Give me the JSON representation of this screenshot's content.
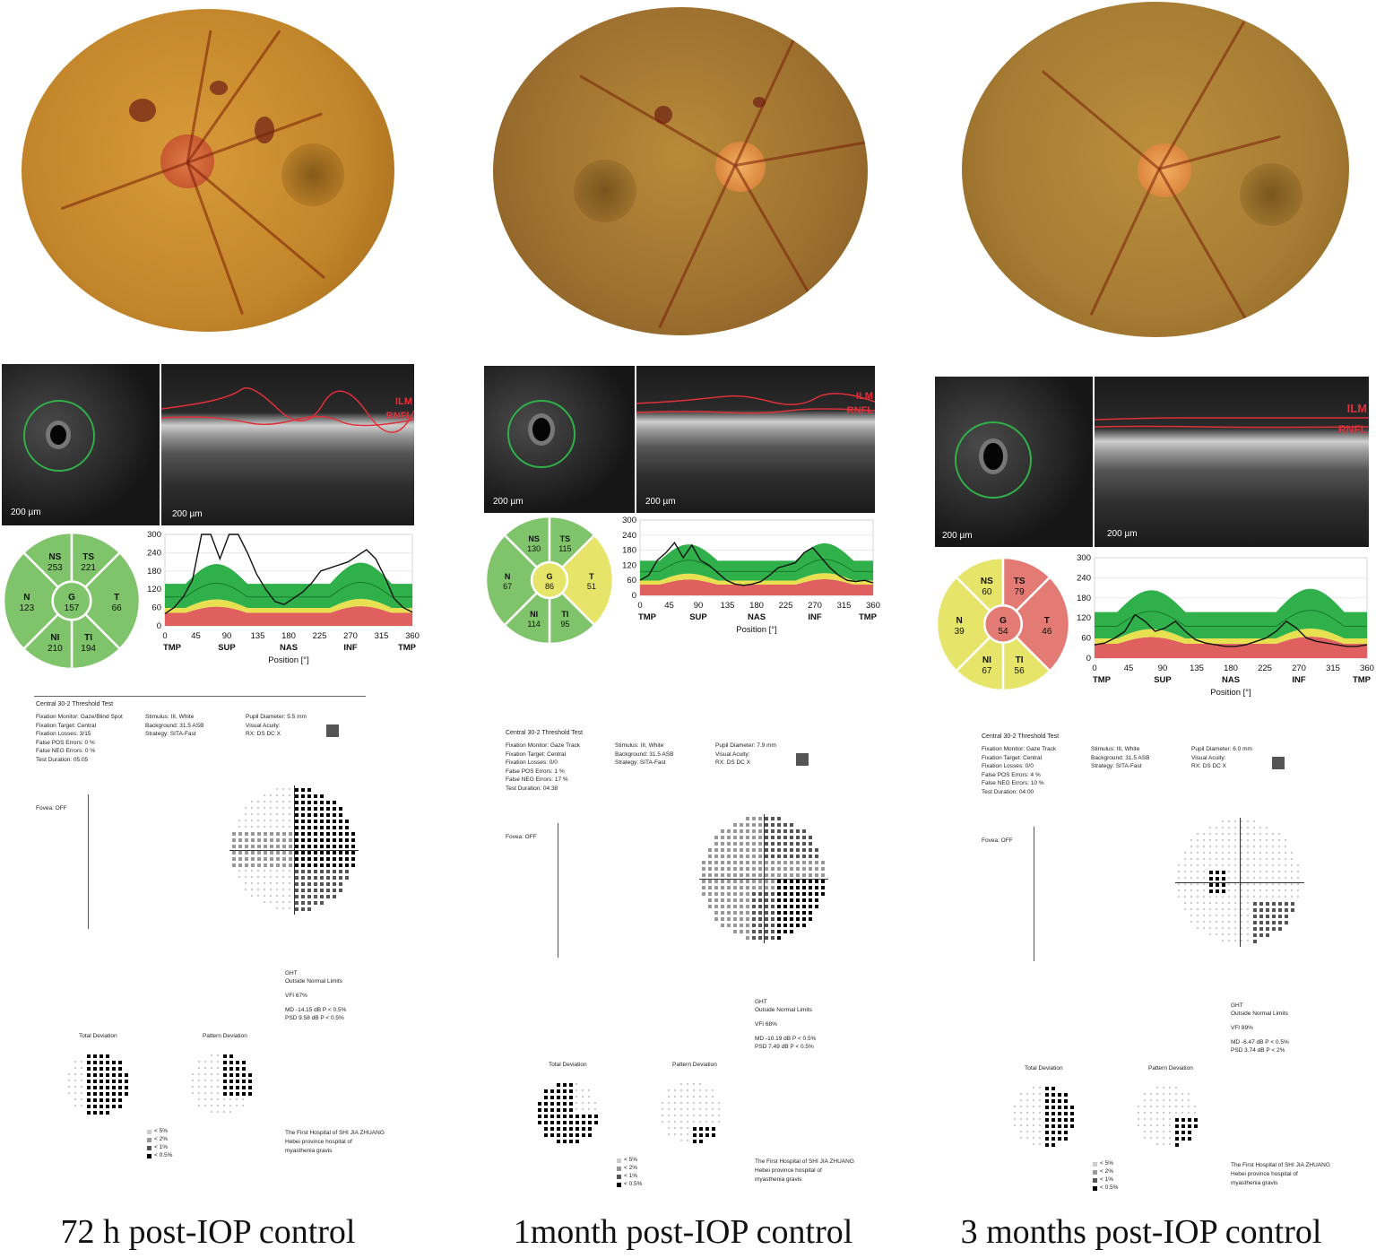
{
  "colors": {
    "fundus_orange": "#c68a2c",
    "oct_green": "#2fb04a",
    "oct_yellow": "#e8e050",
    "oct_red": "#e06060",
    "wheel_green": "#7fc46a",
    "wheel_yellow": "#e7e46a",
    "wheel_red": "#e47a74"
  },
  "tsnit": {
    "y_ticks": [
      "300",
      "240",
      "180",
      "120",
      "60",
      "0"
    ],
    "x_ticks": [
      "0",
      "45",
      "90",
      "135",
      "180",
      "225",
      "270",
      "315",
      "360"
    ],
    "x_regions": [
      "TMP",
      "SUP",
      "NAS",
      "INF",
      "TMP"
    ],
    "axis_label": "Position [°]"
  },
  "oct_scale": "200 µm",
  "layers": {
    "ilm": "ILM",
    "rnfl": "RNFL"
  },
  "vf_labels": {
    "test": "Central 30-2 Threshold Test",
    "total_dev": "Total Deviation",
    "pattern_dev": "Pattern Deviation",
    "ght": "GHT",
    "ght_result": "Outside Normal Limits",
    "hospital": "The First Hospital of SHI JIA ZHUANG",
    "hospital2": "Hebei province hospital of",
    "hospital3": "myasthenia gravis",
    "legend": [
      "< 5%",
      "< 2%",
      "< 1%",
      "< 0.5%"
    ],
    "fovea": "Fovea: OFF",
    "stimulus": "Stimulus: III, White",
    "background": "Background: 31.5 ASB",
    "strategy": "Strategy: SITA-Fast"
  },
  "panels": [
    {
      "caption": "72 h post-IOP control",
      "wheel": {
        "NS": "253",
        "TS": "221",
        "N": "123",
        "G": "157",
        "T": "66",
        "NI": "210",
        "TI": "194"
      },
      "vf": {
        "monitor": "Fixation Monitor: Gaze/Blind Spot",
        "target": "Fixation Target: Central",
        "losses": "Fixation Losses: 3/15",
        "fpos": "False POS Errors: 0 %",
        "fneg": "False NEG Errors: 0 %",
        "duration": "Test Duration: 05:05",
        "pupil": "Pupil Diameter: 5.5 mm",
        "acuity": "Visual Acuity:",
        "rx": "RX: DS DC X",
        "vfi": "VFI 67%",
        "md": "MD -14.15 dB P < 0.5%",
        "psd": "PSD 9.58 dB P < 0.5%"
      }
    },
    {
      "caption": "1month post-IOP control",
      "wheel": {
        "NS": "130",
        "TS": "115",
        "N": "67",
        "G": "86",
        "T": "51",
        "NI": "114",
        "TI": "95"
      },
      "vf": {
        "monitor": "Fixation Monitor: Gaze Track",
        "target": "Fixation Target: Central",
        "losses": "Fixation Losses: 0/0",
        "fpos": "False POS Errors: 1 %",
        "fneg": "False NEG Errors: 17 %",
        "duration": "Test Duration: 04:38",
        "pupil": "Pupil Diameter: 7.9 mm",
        "acuity": "Visual Acuity:",
        "rx": "RX: DS DC X",
        "vfi": "VFI 68%",
        "md": "MD -10.19 dB P < 0.5%",
        "psd": "PSD 7.49 dB P < 0.5%"
      }
    },
    {
      "caption": "3 months post-IOP control",
      "wheel": {
        "NS": "60",
        "TS": "79",
        "N": "39",
        "G": "54",
        "T": "46",
        "NI": "67",
        "TI": "56"
      },
      "vf": {
        "monitor": "Fixation Monitor: Gaze Track",
        "target": "Fixation Target: Central",
        "losses": "Fixation Losses: 0/0",
        "fpos": "False POS Errors: 4 %",
        "fneg": "False NEG Errors: 10 %",
        "duration": "Test Duration: 04:00",
        "pupil": "Pupil Diameter: 6.0 mm",
        "acuity": "Visual Acuity:",
        "rx": "RX: DS DC X",
        "vfi": "VFI 89%",
        "md": "MD -6.47 dB P < 0.5%",
        "psd": "PSD 3.74 dB P < 2%"
      }
    }
  ]
}
